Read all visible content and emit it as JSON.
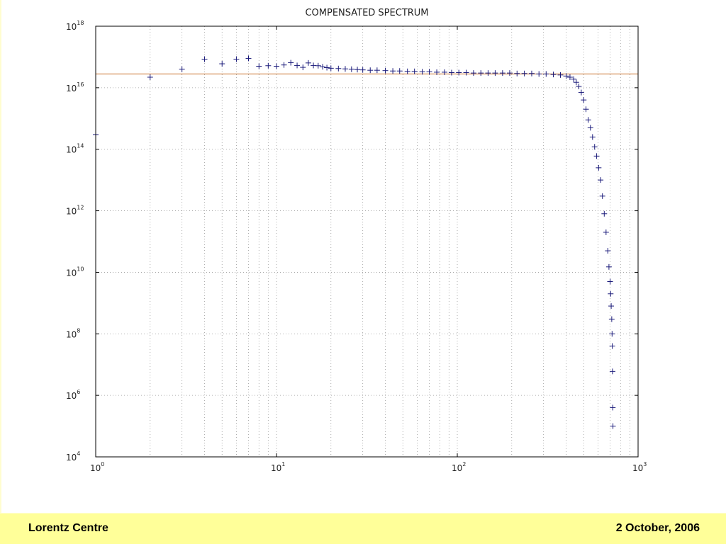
{
  "footer": {
    "left": "Lorentz Centre",
    "right": "2 October, 2006"
  },
  "colors": {
    "slide_background": "#fffdd0",
    "footer_background": "#ffff99",
    "marker": "#1a1a7a",
    "reference_line": "#d08040",
    "grid": "#9a9a9a"
  },
  "chart_data": {
    "type": "scatter",
    "title": "COMPENSATED SPECTRUM",
    "xlabel": "",
    "ylabel": "",
    "x_scale": "log",
    "y_scale": "log",
    "xlim": [
      1,
      1000
    ],
    "ylim": [
      10000,
      1e+18
    ],
    "x_ticks": [
      {
        "value": 1,
        "base": "10",
        "exp": "0"
      },
      {
        "value": 10,
        "base": "10",
        "exp": "1"
      },
      {
        "value": 100,
        "base": "10",
        "exp": "2"
      },
      {
        "value": 1000,
        "base": "10",
        "exp": "3"
      }
    ],
    "y_ticks": [
      {
        "value": 10000,
        "base": "10",
        "exp": "4"
      },
      {
        "value": 1000000,
        "base": "10",
        "exp": "6"
      },
      {
        "value": 100000000,
        "base": "10",
        "exp": "8"
      },
      {
        "value": 10000000000,
        "base": "10",
        "exp": "10"
      },
      {
        "value": 1000000000000,
        "base": "10",
        "exp": "12"
      },
      {
        "value": 100000000000000,
        "base": "10",
        "exp": "14"
      },
      {
        "value": 10000000000000000,
        "base": "10",
        "exp": "16"
      },
      {
        "value": 1000000000000000000,
        "base": "10",
        "exp": "18"
      }
    ],
    "grid": true,
    "legend": "none",
    "reference_line": {
      "y": 2.8e+16
    },
    "series": [
      {
        "marker": "+",
        "x": [
          1,
          2,
          3,
          4,
          5,
          6,
          7,
          8,
          9,
          10,
          11,
          12,
          13,
          14,
          15,
          16,
          17,
          18,
          19,
          20,
          22,
          24,
          26,
          28,
          30,
          33,
          36,
          40,
          44,
          48,
          53,
          58,
          64,
          70,
          77,
          85,
          93,
          102,
          112,
          123,
          135,
          148,
          162,
          178,
          195,
          214,
          235,
          258,
          283,
          310,
          340,
          372,
          400,
          420,
          440,
          455,
          470,
          485,
          500,
          515,
          530,
          545,
          560,
          575,
          590,
          605,
          620,
          635,
          650,
          665,
          680,
          690,
          700,
          705,
          710,
          715,
          718,
          720,
          722,
          724,
          726
        ],
        "y": [
          300000000000000.0,
          2.2e+16,
          4e+16,
          8.5e+16,
          6e+16,
          8.5e+16,
          9e+16,
          5e+16,
          5.2e+16,
          5e+16,
          5.5e+16,
          6.5e+16,
          5.3e+16,
          4.6e+16,
          6.4e+16,
          5.3e+16,
          5.2e+16,
          4.8e+16,
          4.5e+16,
          4.3e+16,
          4.2e+16,
          4.1e+16,
          4e+16,
          3.9e+16,
          3.8e+16,
          3.7e+16,
          3.7e+16,
          3.6e+16,
          3.5e+16,
          3.5e+16,
          3.4e+16,
          3.4e+16,
          3.3e+16,
          3.3e+16,
          3.2e+16,
          3.2e+16,
          3.1e+16,
          3.1e+16,
          3.1e+16,
          3e+16,
          3e+16,
          3e+16,
          3e+16,
          3e+16,
          3e+16,
          2.9e+16,
          2.9e+16,
          2.9e+16,
          2.8e+16,
          2.8e+16,
          2.7e+16,
          2.6e+16,
          2.4e+16,
          2.2e+16,
          1.9e+16,
          1.5e+16,
          1.1e+16,
          7000000000000000.0,
          4000000000000000.0,
          2000000000000000.0,
          900000000000000.0,
          500000000000000.0,
          250000000000000.0,
          120000000000000.0,
          60000000000000.0,
          25000000000000.0,
          10000000000000.0,
          3000000000000.0,
          800000000000.0,
          200000000000.0,
          50000000000.0,
          15000000000.0,
          5000000000.0,
          2000000000.0,
          800000000.0,
          300000000.0,
          100000000.0,
          40000000.0,
          6000000.0,
          400000.0,
          100000.0
        ]
      }
    ]
  }
}
